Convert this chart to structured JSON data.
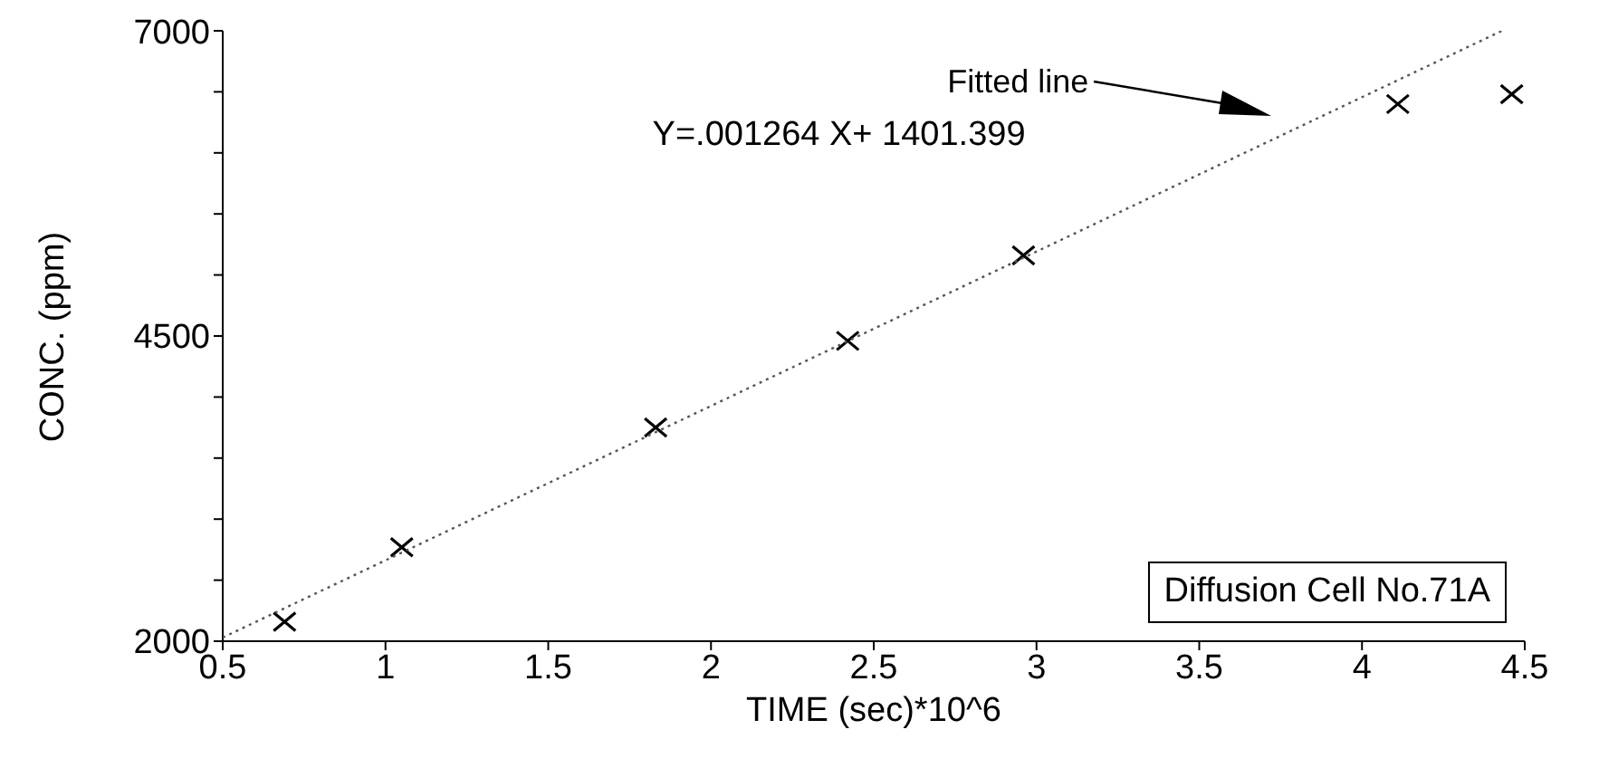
{
  "chart_data": {
    "type": "scatter",
    "xlabel": "TIME (sec)*10^6",
    "ylabel": "CONC. (ppm)",
    "x": [
      0.69,
      1.05,
      1.83,
      2.42,
      2.96,
      4.11,
      4.46
    ],
    "series": [
      {
        "color": "#000000",
        "marker": "cross",
        "values": [
          2160,
          2770,
          3750,
          4460,
          5160,
          6400,
          6480
        ]
      },
      {
        "type": "line",
        "color": "#555555",
        "line_style": "dotted",
        "marker": "none",
        "x": [
          0.5,
          4.43
        ],
        "values": [
          2030,
          7000
        ]
      }
    ],
    "xlim": [
      0.5,
      4.5
    ],
    "xticks": [
      0.5,
      1,
      1.5,
      2,
      2.5,
      3,
      3.5,
      4,
      4.5
    ],
    "ylim": [
      2000,
      7000
    ],
    "yticks": [
      2000,
      {
        "value": 2500,
        "label": null
      },
      {
        "value": 3000,
        "label": null
      },
      {
        "value": 3500,
        "label": null
      },
      {
        "value": 4000,
        "label": null
      },
      4500,
      {
        "value": 5000,
        "label": null
      },
      {
        "value": 5500,
        "label": null
      },
      {
        "value": 6000,
        "label": null
      },
      {
        "value": 6500,
        "label": null
      },
      7000
    ],
    "annotations": [
      "Fitted line",
      "Y=.001264 X+ 1401.399",
      "Diffusion Cell No.71A"
    ],
    "grid": false,
    "legend": false
  }
}
